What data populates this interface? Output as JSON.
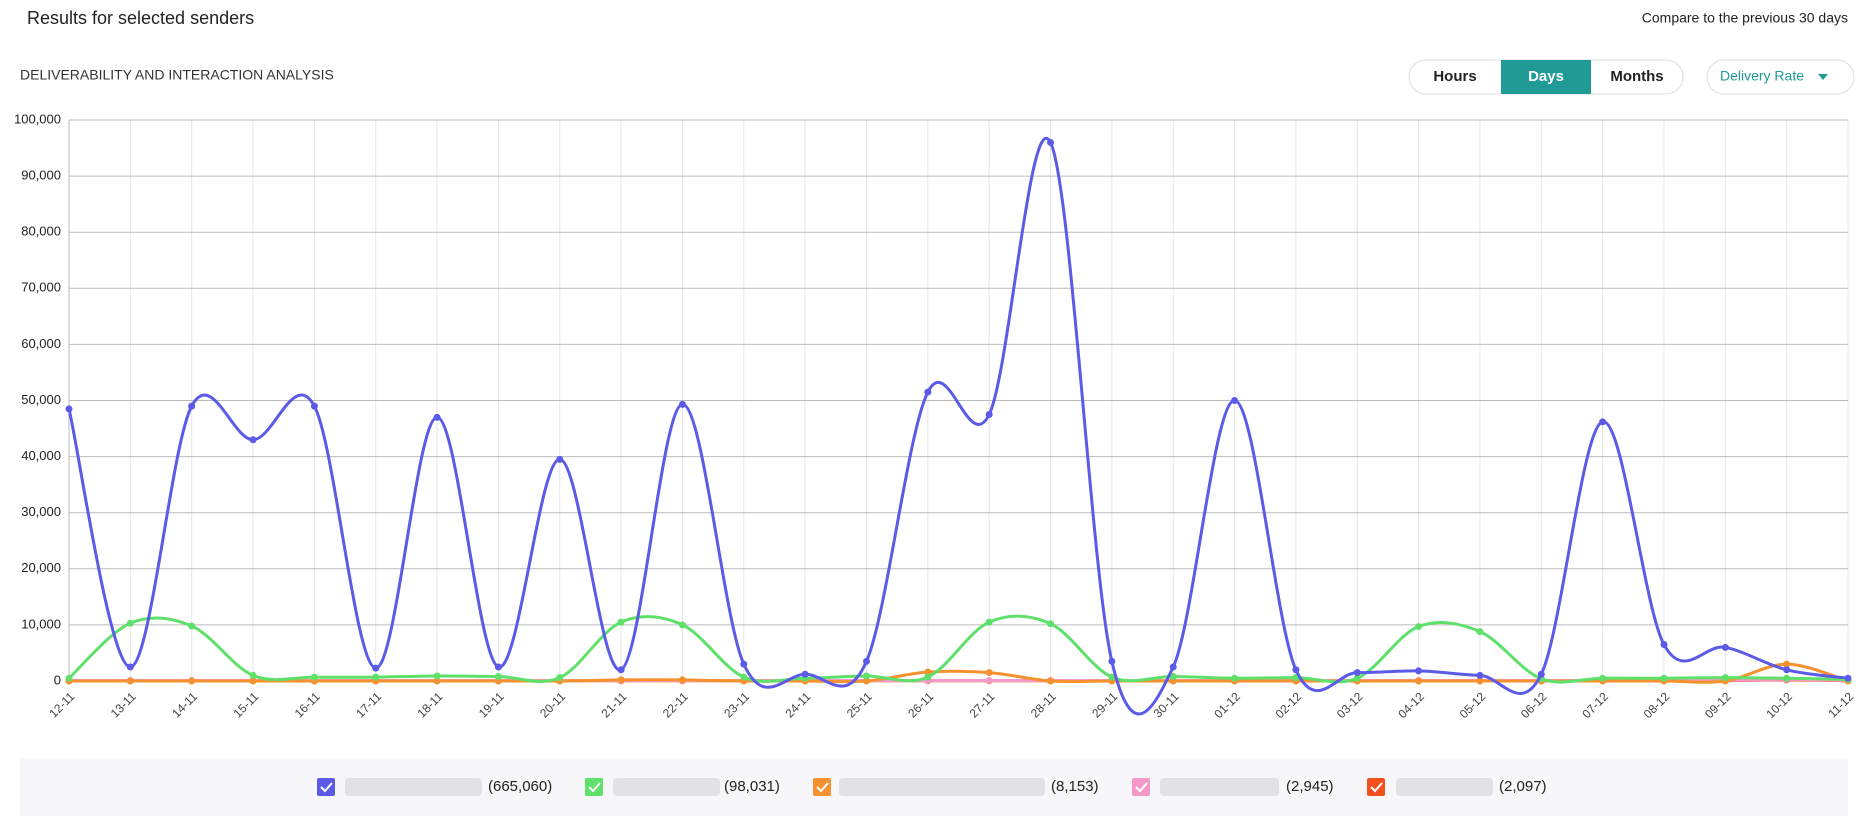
{
  "header": {
    "title": "Results for selected senders",
    "compare": "Compare to the previous 30 days"
  },
  "section_title": "DELIVERABILITY AND INTERACTION ANALYSIS",
  "view_buttons": [
    "Hours",
    "Days",
    "Months"
  ],
  "active_view": "Days",
  "metric_dropdown": "Delivery Rate",
  "chart_data": {
    "type": "line",
    "smooth": true,
    "grid": true,
    "categories": [
      "12-11",
      "13-11",
      "14-11",
      "15-11",
      "16-11",
      "17-11",
      "18-11",
      "19-11",
      "20-11",
      "21-11",
      "22-11",
      "23-11",
      "24-11",
      "25-11",
      "26-11",
      "27-11",
      "28-11",
      "29-11",
      "30-11",
      "01-12",
      "02-12",
      "03-12",
      "04-12",
      "05-12",
      "06-12",
      "07-12",
      "08-12",
      "09-12",
      "10-12",
      "11-12"
    ],
    "ylim": [
      0,
      100000
    ],
    "yticks": [
      0,
      {
        "value": 10000,
        "label": "10,000"
      },
      {
        "value": 20000,
        "label": "20,000"
      },
      {
        "value": 30000,
        "label": "30,000"
      },
      {
        "value": 40000,
        "label": "40,000"
      },
      {
        "value": 50000,
        "label": "50,000"
      },
      {
        "value": 60000,
        "label": "60,000"
      },
      {
        "value": 70000,
        "label": "70,000"
      },
      {
        "value": 80000,
        "label": "80,000"
      },
      {
        "value": 90000,
        "label": "90,000"
      },
      {
        "value": 100000,
        "label": "100,000"
      }
    ],
    "series": [
      {
        "color": "#5b5be8",
        "legend_label": "(665,060)",
        "values": [
          48500,
          2500,
          49000,
          43000,
          49000,
          2300,
          47000,
          2500,
          39500,
          2000,
          49300,
          3000,
          1200,
          3500,
          51500,
          47500,
          96000,
          3500,
          2500,
          50000,
          2000,
          1500,
          1800,
          1000,
          1200,
          46200,
          6500,
          6000,
          2000,
          500
        ]
      },
      {
        "color": "#5ee06a",
        "legend_label": "(98,031)",
        "values": [
          500,
          10300,
          9800,
          1000,
          700,
          700,
          900,
          800,
          600,
          10500,
          10000,
          700,
          500,
          900,
          700,
          10500,
          10200,
          700,
          800,
          500,
          600,
          500,
          9700,
          8800,
          400,
          500,
          500,
          600,
          500,
          300
        ]
      },
      {
        "color": "#f5922f",
        "legend_label": "(8,153)",
        "values": [
          0,
          0,
          0,
          0,
          0,
          0,
          0,
          0,
          0,
          200,
          200,
          0,
          0,
          0,
          1600,
          1500,
          0,
          0,
          0,
          0,
          0,
          0,
          0,
          0,
          0,
          0,
          0,
          0,
          3000,
          0
        ]
      },
      {
        "color": "#f59ac8",
        "legend_label": "(2,945)",
        "values": [
          100,
          100,
          100,
          100,
          100,
          100,
          100,
          100,
          100,
          100,
          100,
          100,
          100,
          100,
          100,
          100,
          100,
          100,
          100,
          100,
          100,
          100,
          100,
          100,
          100,
          100,
          100,
          100,
          300,
          100
        ]
      },
      {
        "color": "#f4511e",
        "legend_label": "(2,097)",
        "values": [
          50,
          50,
          50,
          50,
          50,
          50,
          50,
          50,
          50,
          50,
          50,
          50,
          50,
          50,
          50,
          50,
          50,
          50,
          50,
          50,
          50,
          50,
          50,
          50,
          50,
          50,
          50,
          50,
          200,
          50
        ]
      }
    ]
  }
}
